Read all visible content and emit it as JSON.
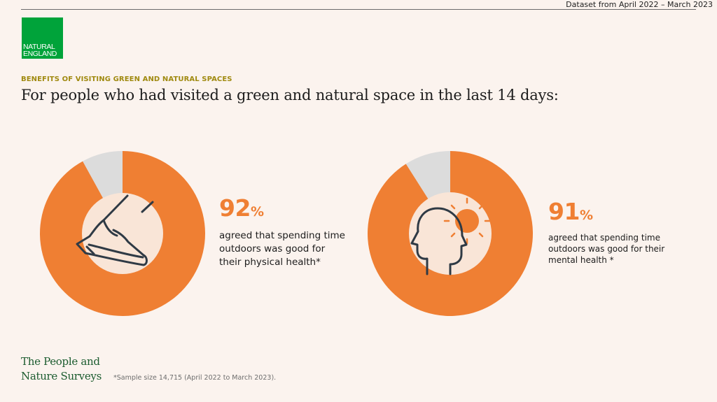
{
  "header": {
    "dataset": "Dataset from April 2022 – March 2023",
    "logo_line1": "NATURAL",
    "logo_line2": "ENGLAND",
    "kicker": "BENEFITS OF VISITING GREEN AND NATURAL SPACES",
    "headline": "For people who had visited a green and natural space in the last 14 days:"
  },
  "colors": {
    "accent": "#ef7f33",
    "remainder": "#dcdcdc",
    "center": "#f9e5d7",
    "background": "#fbf3ee",
    "logo": "#00a33a",
    "brand_text": "#1b5b2e",
    "kicker": "#a08a10"
  },
  "chart_data": [
    {
      "type": "pie",
      "values": [
        92,
        8
      ],
      "value_label": "92",
      "unit": "%",
      "description": "agreed that spending time outdoors was good for their physical health*",
      "icon": "shoe-step-icon"
    },
    {
      "type": "pie",
      "values": [
        91,
        9
      ],
      "value_label": "91",
      "unit": "%",
      "description": "agreed that spending time outdoors was good for their mental health *",
      "icon": "head-sun-icon"
    }
  ],
  "footer": {
    "brand_line1": "The People and",
    "brand_line2": "Nature Surveys",
    "footnote": "*Sample size 14,715 (April 2022 to March 2023)."
  }
}
